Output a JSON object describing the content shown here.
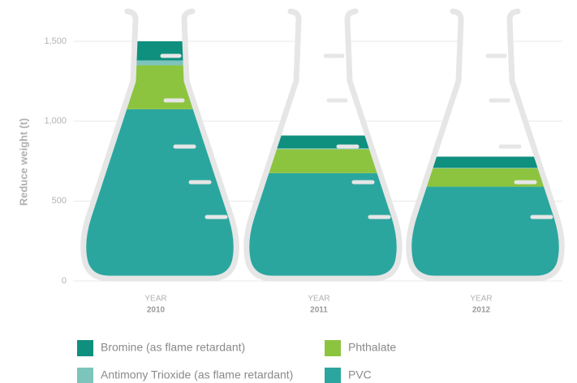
{
  "chart_data": {
    "type": "stacked_bar",
    "y_label": "Reduce weight (t)",
    "category_prefix": "YEAR",
    "categories": [
      "2010",
      "2011",
      "2012"
    ],
    "series": [
      {
        "name": "PVC",
        "color": "#2ba69f",
        "values": [
          1075,
          675,
          590
        ]
      },
      {
        "name": "Phthalate",
        "color": "#8cc43f",
        "values": [
          275,
          150,
          115
        ]
      },
      {
        "name": "Antimony Trioxide (as flame retardant)",
        "color": "#7cc4bc",
        "values": [
          30,
          5,
          3
        ]
      },
      {
        "name": "Bromine (as flame retardant)",
        "color": "#0f8f7e",
        "values": [
          120,
          80,
          70
        ]
      }
    ],
    "ylim": [
      0,
      1700
    ],
    "yticks": [
      0,
      500,
      {
        "value": 1000,
        "label": "1,000"
      },
      {
        "value": 1500,
        "label": "1,500"
      }
    ],
    "grid": true
  }
}
